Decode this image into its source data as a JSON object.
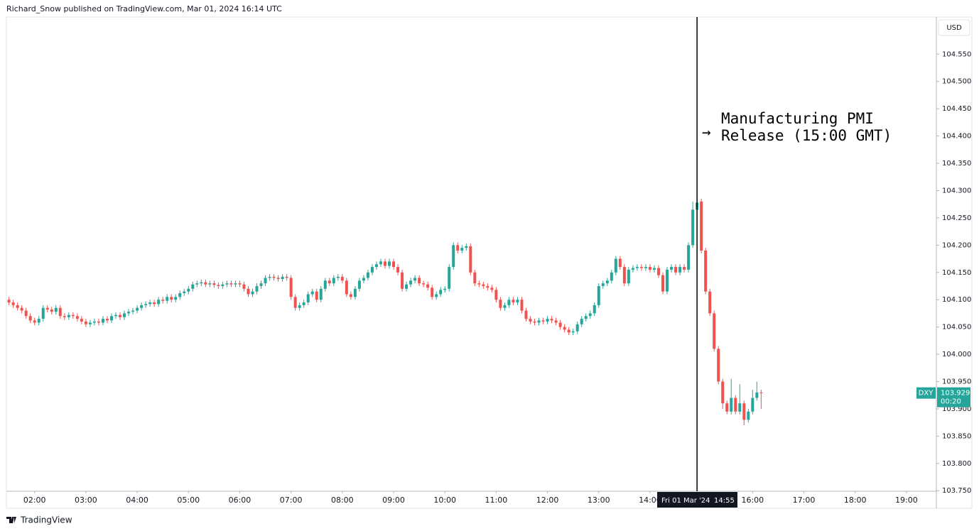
{
  "header": "Richard_Snow published on TradingView.com, Mar 01, 2024 16:14 UTC",
  "footer": "TradingView",
  "chart_data": {
    "type": "candlestick",
    "currency": "USD",
    "up_color": "#26a69a",
    "down_color": "#ef5350",
    "annotation": [
      "Manufacturing PMI",
      "Release (15:00 GMT)"
    ],
    "crosshair": {
      "x": 895,
      "date": "Fri 01 Mar '24",
      "time": "14:55"
    },
    "last_price": {
      "symbol": "DXY",
      "value": 103.929,
      "countdown": "00:20"
    },
    "xlim": [
      87,
      1175
    ],
    "ylim": [
      103.749,
      104.618
    ],
    "xticks": [
      {
        "value": 120,
        "label": "02:00"
      },
      {
        "value": 180,
        "label": "03:00"
      },
      {
        "value": 240,
        "label": "04:00"
      },
      {
        "value": 300,
        "label": "05:00"
      },
      {
        "value": 360,
        "label": "06:00"
      },
      {
        "value": 420,
        "label": "07:00"
      },
      {
        "value": 480,
        "label": "08:00"
      },
      {
        "value": 540,
        "label": "09:00"
      },
      {
        "value": 600,
        "label": "10:00"
      },
      {
        "value": 660,
        "label": "11:00"
      },
      {
        "value": 720,
        "label": "12:00"
      },
      {
        "value": 780,
        "label": "13:00"
      },
      {
        "value": 840,
        "label": "14:00"
      },
      {
        "value": 960,
        "label": "16:00"
      },
      {
        "value": 1020,
        "label": "17:00"
      },
      {
        "value": 1080,
        "label": "18:00"
      },
      {
        "value": 1140,
        "label": "19:00"
      }
    ],
    "yticks": [
      {
        "value": 103.75,
        "label": "103.750"
      },
      {
        "value": 103.8,
        "label": "103.800"
      },
      {
        "value": 103.85,
        "label": "103.850"
      },
      {
        "value": 103.9,
        "label": "103.900"
      },
      {
        "value": 103.95,
        "label": "103.950"
      },
      {
        "value": 104.0,
        "label": "104.000"
      },
      {
        "value": 104.05,
        "label": "104.050"
      },
      {
        "value": 104.1,
        "label": "104.100"
      },
      {
        "value": 104.15,
        "label": "104.150"
      },
      {
        "value": 104.2,
        "label": "104.200"
      },
      {
        "value": 104.25,
        "label": "104.250"
      },
      {
        "value": 104.3,
        "label": "104.300"
      },
      {
        "value": 104.35,
        "label": "104.350"
      },
      {
        "value": 104.4,
        "label": "104.400"
      },
      {
        "value": 104.45,
        "label": "104.450"
      },
      {
        "value": 104.5,
        "label": "104.500"
      },
      {
        "value": 104.55,
        "label": "104.550"
      }
    ],
    "x": [
      90,
      95,
      100,
      105,
      110,
      115,
      120,
      125,
      130,
      135,
      140,
      145,
      150,
      155,
      160,
      165,
      170,
      175,
      180,
      185,
      190,
      195,
      200,
      205,
      210,
      215,
      220,
      225,
      230,
      235,
      240,
      245,
      250,
      255,
      260,
      265,
      270,
      275,
      280,
      285,
      290,
      295,
      300,
      305,
      310,
      315,
      320,
      325,
      330,
      335,
      340,
      345,
      350,
      355,
      360,
      365,
      370,
      375,
      380,
      385,
      390,
      395,
      400,
      405,
      410,
      415,
      420,
      425,
      430,
      435,
      440,
      445,
      450,
      455,
      460,
      465,
      470,
      475,
      480,
      485,
      490,
      495,
      500,
      505,
      510,
      515,
      520,
      525,
      530,
      535,
      540,
      545,
      550,
      555,
      560,
      565,
      570,
      575,
      580,
      585,
      590,
      595,
      600,
      605,
      610,
      615,
      620,
      625,
      630,
      635,
      640,
      645,
      650,
      655,
      660,
      665,
      670,
      675,
      680,
      685,
      690,
      695,
      700,
      705,
      710,
      715,
      720,
      725,
      730,
      735,
      740,
      745,
      750,
      755,
      760,
      765,
      770,
      775,
      780,
      785,
      790,
      795,
      800,
      805,
      810,
      815,
      820,
      825,
      830,
      835,
      840,
      845,
      850,
      855,
      860,
      865,
      870,
      875,
      880,
      885,
      890,
      895,
      900,
      905,
      910,
      915,
      920,
      925,
      930,
      935,
      940,
      945,
      950,
      955,
      960,
      965,
      970
    ],
    "open": [
      104.1,
      104.095,
      104.09,
      104.085,
      104.08,
      104.07,
      104.062,
      104.058,
      104.065,
      104.085,
      104.082,
      104.078,
      104.085,
      104.07,
      104.068,
      104.072,
      104.07,
      104.065,
      104.06,
      104.055,
      104.058,
      104.06,
      104.058,
      104.065,
      104.062,
      104.07,
      104.072,
      104.068,
      104.075,
      104.078,
      104.08,
      104.085,
      104.09,
      104.092,
      104.095,
      104.092,
      104.1,
      104.098,
      104.105,
      104.1,
      104.105,
      104.112,
      104.115,
      104.12,
      104.128,
      104.13,
      104.132,
      104.128,
      104.13,
      104.127,
      104.125,
      104.128,
      104.13,
      104.128,
      104.13,
      104.128,
      104.12,
      104.11,
      104.115,
      104.125,
      104.13,
      104.14,
      104.142,
      104.14,
      104.138,
      104.142,
      104.14,
      104.105,
      104.085,
      104.09,
      104.095,
      104.11,
      104.115,
      104.1,
      104.12,
      104.135,
      104.13,
      104.14,
      104.142,
      104.135,
      104.11,
      104.105,
      104.12,
      104.135,
      104.14,
      104.15,
      104.16,
      104.165,
      104.17,
      104.162,
      104.17,
      104.16,
      104.15,
      104.12,
      104.128,
      104.135,
      104.14,
      104.13,
      104.128,
      104.122,
      104.105,
      104.11,
      104.118,
      104.12,
      104.16,
      104.2,
      104.19,
      104.195,
      104.198,
      104.15,
      104.13,
      104.128,
      104.125,
      104.122,
      104.118,
      104.1,
      104.085,
      104.09,
      104.1,
      104.095,
      104.1,
      104.08,
      104.065,
      104.06,
      104.058,
      104.062,
      104.06,
      104.065,
      104.062,
      104.058,
      104.05,
      104.045,
      104.04,
      104.042,
      104.055,
      104.065,
      104.07,
      104.075,
      104.09,
      104.125,
      104.13,
      104.135,
      104.15,
      104.175,
      104.16,
      104.13,
      104.155,
      104.158,
      104.16,
      104.158,
      104.16,
      104.155,
      104.158,
      104.145,
      104.115,
      104.155,
      104.16,
      104.15,
      104.16,
      104.155,
      104.2,
      104.265,
      104.28,
      104.19,
      104.115,
      104.075,
      104.01,
      103.95,
      103.91,
      103.895,
      103.92,
      103.895,
      103.91,
      103.88,
      103.895,
      103.92,
      103.93
    ],
    "high": [
      104.105,
      104.1,
      104.095,
      104.09,
      104.085,
      104.075,
      104.067,
      104.07,
      104.09,
      104.09,
      104.087,
      104.09,
      104.09,
      104.075,
      104.077,
      104.077,
      104.075,
      104.07,
      104.065,
      104.063,
      104.065,
      104.065,
      104.07,
      104.07,
      104.075,
      104.077,
      104.077,
      104.08,
      104.083,
      104.085,
      104.09,
      104.095,
      104.097,
      104.1,
      104.1,
      104.105,
      104.105,
      104.11,
      104.11,
      104.11,
      104.117,
      104.12,
      104.125,
      104.133,
      104.135,
      104.137,
      104.137,
      104.135,
      104.135,
      104.132,
      104.133,
      104.135,
      104.135,
      104.135,
      104.135,
      104.133,
      104.125,
      104.12,
      104.13,
      104.135,
      104.145,
      104.147,
      104.147,
      104.145,
      104.147,
      104.147,
      104.145,
      104.11,
      104.095,
      104.1,
      104.115,
      104.12,
      104.12,
      104.125,
      104.14,
      104.14,
      104.145,
      104.147,
      104.147,
      104.14,
      104.115,
      104.125,
      104.14,
      104.145,
      104.155,
      104.165,
      104.17,
      104.175,
      104.175,
      104.175,
      104.175,
      104.165,
      104.155,
      104.133,
      104.14,
      104.145,
      104.145,
      104.135,
      104.133,
      104.127,
      104.115,
      104.123,
      104.125,
      104.165,
      104.205,
      104.205,
      104.2,
      104.203,
      104.203,
      104.155,
      104.135,
      104.133,
      104.13,
      104.127,
      104.123,
      104.105,
      104.095,
      104.105,
      104.105,
      104.105,
      104.105,
      104.085,
      104.07,
      104.065,
      104.067,
      104.067,
      104.07,
      104.07,
      104.067,
      104.063,
      104.055,
      104.05,
      104.047,
      104.06,
      104.07,
      104.075,
      104.08,
      104.095,
      104.13,
      104.135,
      104.14,
      104.155,
      104.18,
      104.18,
      104.165,
      104.16,
      104.163,
      104.165,
      104.165,
      104.165,
      104.165,
      104.163,
      104.163,
      104.15,
      104.16,
      104.165,
      104.165,
      104.165,
      104.165,
      104.205,
      104.28,
      104.283,
      104.285,
      104.195,
      104.12,
      104.08,
      104.015,
      103.955,
      103.915,
      103.955,
      103.925,
      103.945,
      103.915,
      103.9,
      103.935,
      103.95,
      103.935
    ],
    "low": [
      104.09,
      104.085,
      104.08,
      104.075,
      104.065,
      104.057,
      104.053,
      104.053,
      104.06,
      104.077,
      104.073,
      104.073,
      104.065,
      104.063,
      104.063,
      104.065,
      104.06,
      104.055,
      104.05,
      104.05,
      104.053,
      104.053,
      104.053,
      104.057,
      104.057,
      104.065,
      104.063,
      104.063,
      104.07,
      104.073,
      104.075,
      104.08,
      104.085,
      104.087,
      104.087,
      104.087,
      104.093,
      104.093,
      104.095,
      104.095,
      104.1,
      104.107,
      104.11,
      104.115,
      104.123,
      104.125,
      104.123,
      104.123,
      104.122,
      104.12,
      104.12,
      104.123,
      104.123,
      104.123,
      104.123,
      104.115,
      104.105,
      104.105,
      104.11,
      104.12,
      104.125,
      104.135,
      104.135,
      104.133,
      104.133,
      104.135,
      104.1,
      104.08,
      104.08,
      104.085,
      104.09,
      104.105,
      104.095,
      104.095,
      104.115,
      104.125,
      104.125,
      104.135,
      104.13,
      104.105,
      104.1,
      104.1,
      104.115,
      104.13,
      104.135,
      104.145,
      104.155,
      104.16,
      104.157,
      104.157,
      104.155,
      104.145,
      104.115,
      104.115,
      104.123,
      104.13,
      104.125,
      104.123,
      104.117,
      104.1,
      104.1,
      104.105,
      104.113,
      104.115,
      104.155,
      104.185,
      104.185,
      104.19,
      104.145,
      104.125,
      104.123,
      104.12,
      104.117,
      104.113,
      104.095,
      104.08,
      104.08,
      104.085,
      104.09,
      104.09,
      104.075,
      104.06,
      104.055,
      104.053,
      104.053,
      104.055,
      104.055,
      104.057,
      104.053,
      104.045,
      104.04,
      104.035,
      104.035,
      104.037,
      104.05,
      104.06,
      104.065,
      104.07,
      104.085,
      104.12,
      104.125,
      104.13,
      104.145,
      104.155,
      104.125,
      104.125,
      104.15,
      104.153,
      104.153,
      104.153,
      104.15,
      104.15,
      104.14,
      104.11,
      104.11,
      104.15,
      104.145,
      104.145,
      104.15,
      104.15,
      104.195,
      104.26,
      104.185,
      104.11,
      104.07,
      104.005,
      103.945,
      103.9,
      103.89,
      103.89,
      103.89,
      103.89,
      103.87,
      103.875,
      103.89,
      103.915,
      103.9
    ],
    "close": [
      104.095,
      104.09,
      104.085,
      104.08,
      104.07,
      104.062,
      104.058,
      104.065,
      104.085,
      104.082,
      104.078,
      104.085,
      104.07,
      104.068,
      104.072,
      104.07,
      104.065,
      104.06,
      104.055,
      104.058,
      104.06,
      104.058,
      104.065,
      104.062,
      104.07,
      104.072,
      104.068,
      104.075,
      104.078,
      104.08,
      104.085,
      104.09,
      104.092,
      104.095,
      104.092,
      104.1,
      104.098,
      104.105,
      104.1,
      104.105,
      104.112,
      104.115,
      104.12,
      104.128,
      104.13,
      104.132,
      104.128,
      104.13,
      104.127,
      104.125,
      104.128,
      104.13,
      104.128,
      104.13,
      104.128,
      104.12,
      104.11,
      104.115,
      104.125,
      104.13,
      104.14,
      104.142,
      104.14,
      104.138,
      104.142,
      104.14,
      104.105,
      104.085,
      104.09,
      104.095,
      104.11,
      104.115,
      104.1,
      104.12,
      104.135,
      104.13,
      104.14,
      104.142,
      104.135,
      104.11,
      104.105,
      104.12,
      104.135,
      104.14,
      104.15,
      104.16,
      104.165,
      104.17,
      104.162,
      104.17,
      104.16,
      104.15,
      104.12,
      104.128,
      104.135,
      104.14,
      104.13,
      104.128,
      104.122,
      104.105,
      104.11,
      104.118,
      104.12,
      104.16,
      104.2,
      104.19,
      104.195,
      104.198,
      104.15,
      104.13,
      104.128,
      104.125,
      104.122,
      104.118,
      104.1,
      104.085,
      104.09,
      104.1,
      104.095,
      104.1,
      104.08,
      104.065,
      104.06,
      104.058,
      104.062,
      104.06,
      104.065,
      104.062,
      104.058,
      104.05,
      104.045,
      104.04,
      104.042,
      104.055,
      104.065,
      104.07,
      104.075,
      104.09,
      104.125,
      104.13,
      104.135,
      104.15,
      104.175,
      104.16,
      104.13,
      104.155,
      104.158,
      104.16,
      104.158,
      104.16,
      104.155,
      104.158,
      104.145,
      104.115,
      104.155,
      104.16,
      104.15,
      104.16,
      104.155,
      104.2,
      104.265,
      104.278,
      104.19,
      104.115,
      104.075,
      104.01,
      103.95,
      103.91,
      103.895,
      103.92,
      103.895,
      103.91,
      103.88,
      103.895,
      103.92,
      103.93,
      103.929
    ]
  }
}
